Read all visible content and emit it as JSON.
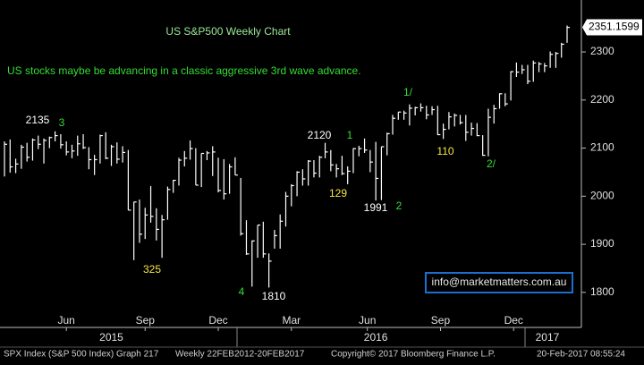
{
  "chart_data": {
    "type": "ohlc",
    "title": "US S&P500 Weekly Chart",
    "subtitle": "US stocks maybe be advancing in a classic aggressive 3rd wave advance.",
    "color": "#ffffff",
    "title_color": "#9be89b",
    "subtitle_color": "#33dd33",
    "ohlc": {
      "high": [
        2114,
        2118,
        2078,
        2107,
        2111,
        2120,
        2126,
        2120,
        2124,
        2135,
        2129,
        2114,
        2107,
        2126,
        2129,
        2102,
        2086,
        2128,
        2133,
        2107,
        2112,
        2104,
        2096,
        1988,
        1993,
        1976,
        2021,
        1975,
        1961,
        2020,
        2034,
        2080,
        2094,
        2116,
        2100,
        2089,
        2094,
        2104,
        2080,
        2077,
        2067,
        2081,
        2038,
        1950,
        1908,
        1940,
        1947,
        1881,
        1930,
        1962,
        2009,
        2025,
        2052,
        2056,
        2075,
        2075,
        2084,
        2111,
        2096,
        2067,
        2084,
        2062,
        2100,
        2105,
        2120,
        2096,
        2113,
        2103,
        2132,
        2169,
        2175,
        2178,
        2191,
        2186,
        2193,
        2188,
        2187,
        2188,
        2151,
        2175,
        2172,
        2169,
        2169,
        2153,
        2152,
        2127,
        2182,
        2190,
        2214,
        2214,
        2260,
        2278,
        2273,
        2273,
        2282,
        2279,
        2277,
        2301,
        2300,
        2319,
        2355
      ],
      "low": [
        2041,
        2049,
        2048,
        2057,
        2072,
        2074,
        2098,
        2068,
        2100,
        2114,
        2099,
        2085,
        2079,
        2084,
        2098,
        2056,
        2044,
        2068,
        2077,
        2063,
        2068,
        2070,
        1971,
        1867,
        1903,
        1911,
        1945,
        1908,
        1872,
        1951,
        2007,
        2022,
        2062,
        2076,
        2023,
        2019,
        2075,
        2042,
        2008,
        1993,
        2005,
        2044,
        1918,
        1878,
        1812,
        1872,
        1872,
        1810,
        1891,
        1891,
        1937,
        1979,
        2000,
        2022,
        2022,
        2039,
        2039,
        2079,
        2052,
        2039,
        2044,
        2025,
        2048,
        2083,
        2090,
        2050,
        1991,
        1992,
        2085,
        2128,
        2159,
        2159,
        2147,
        2168,
        2176,
        2160,
        2169,
        2127,
        2119,
        2139,
        2145,
        2149,
        2115,
        2126,
        2125,
        2084,
        2083,
        2151,
        2182,
        2187,
        2199,
        2248,
        2254,
        2233,
        2238,
        2258,
        2258,
        2267,
        2267,
        2288,
        2319
      ],
      "close": [
        2108,
        2061,
        2067,
        2102,
        2081,
        2117,
        2108,
        2116,
        2122,
        2126,
        2107,
        2092,
        2094,
        2109,
        2101,
        2076,
        2076,
        2126,
        2079,
        2103,
        2077,
        2091,
        1971,
        1988,
        1921,
        1961,
        1958,
        1931,
        1951,
        2014,
        2033,
        2075,
        2079,
        2099,
        2023,
        2089,
        2090,
        2092,
        2012,
        2005,
        2061,
        2044,
        1922,
        1880,
        1907,
        1940,
        1880,
        1865,
        1918,
        1948,
        2000,
        2022,
        2050,
        2036,
        2073,
        2048,
        2081,
        2092,
        2065,
        2057,
        2047,
        2052,
        2099,
        2099,
        2096,
        2071,
        2037,
        2103,
        2130,
        2162,
        2175,
        2173,
        2183,
        2184,
        2184,
        2169,
        2180,
        2128,
        2139,
        2165,
        2168,
        2153,
        2133,
        2141,
        2126,
        2085,
        2164,
        2182,
        2213,
        2192,
        2259,
        2258,
        2263,
        2239,
        2277,
        2275,
        2271,
        2295,
        2297,
        2316,
        2351
      ]
    },
    "ylim": [
      1729,
      2408
    ],
    "yticks": [
      1800,
      1900,
      2000,
      2100,
      2200,
      2300
    ],
    "xticks": [
      {
        "value": 11,
        "label": "Jun"
      },
      {
        "value": 25,
        "label": "Sep"
      },
      {
        "value": 38,
        "label": "Dec"
      },
      {
        "value": 51,
        "label": "Mar"
      },
      {
        "value": 64.5,
        "label": "Jun"
      },
      {
        "value": 77.5,
        "label": "Sep"
      },
      {
        "value": 90.5,
        "label": "Dec"
      }
    ],
    "year_ticks": [
      {
        "value": 19,
        "label": "2015"
      },
      {
        "value": 66,
        "label": "2016"
      },
      {
        "value": 96.5,
        "label": "2017"
      }
    ],
    "last_price": 2351.1599,
    "annotations": [
      {
        "text": "2135",
        "color": "#ffffff"
      },
      {
        "text": "3",
        "color": "#33dd33"
      },
      {
        "text": "325",
        "color": "#f5e642"
      },
      {
        "text": "4",
        "color": "#33dd33"
      },
      {
        "text": "1810",
        "color": "#ffffff"
      },
      {
        "text": "2120",
        "color": "#ffffff"
      },
      {
        "text": "1",
        "color": "#33dd33"
      },
      {
        "text": "129",
        "color": "#f5e642"
      },
      {
        "text": "1991",
        "color": "#ffffff"
      },
      {
        "text": "2",
        "color": "#33dd33"
      },
      {
        "text": "1/",
        "color": "#33dd33"
      },
      {
        "text": "110",
        "color": "#f5e642"
      },
      {
        "text": "2/",
        "color": "#33dd33"
      }
    ],
    "info": "info@marketmatters.com.au",
    "footer": [
      "SPX Index (S&P 500 Index) Graph 217",
      "Weekly 22FEB2012-20FEB2017",
      "Copyright© 2017 Bloomberg Finance L.P.",
      "20-Feb-2017 08:55:24"
    ]
  }
}
